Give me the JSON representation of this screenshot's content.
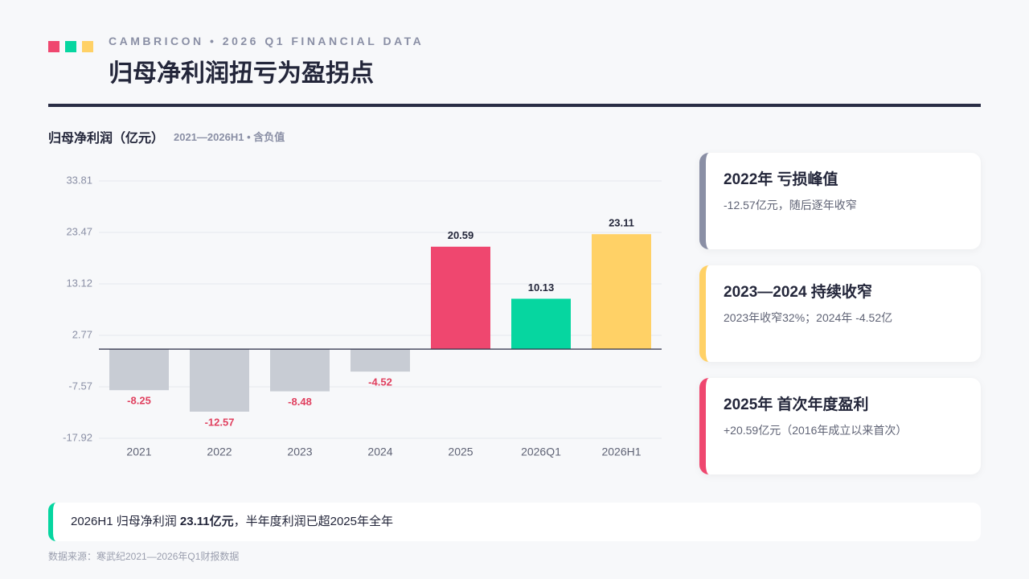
{
  "header": {
    "subtitle": "CAMBRICON • 2026 Q1 FINANCIAL DATA",
    "title": "归母净利润扭亏为盈拐点"
  },
  "chart_data": {
    "type": "bar",
    "title": "归母净利润（亿元）",
    "subtitle": "2021—2026H1 • 含负值",
    "categories": [
      "2021",
      "2022",
      "2023",
      "2024",
      "2025",
      "2026Q1",
      "2026H1"
    ],
    "values": [
      -8.25,
      -12.57,
      -8.48,
      -4.52,
      20.59,
      10.13,
      23.11
    ],
    "colors": [
      "#c8ccd4",
      "#c8ccd4",
      "#c8ccd4",
      "#c8ccd4",
      "#ef476f",
      "#06d6a0",
      "#ffd166"
    ],
    "ylim": [
      -17.92,
      33.81
    ],
    "yticks": [
      -17.92,
      -7.57,
      2.77,
      13.12,
      23.47,
      33.81
    ],
    "grid": true
  },
  "cards": [
    {
      "title": "2022年 亏损峰值",
      "text": "-12.57亿元，随后逐年收窄",
      "color": "#8a8fa5"
    },
    {
      "title": "2023—2024 持续收窄",
      "text": "2023年收窄32%；2024年 -4.52亿",
      "color": "#ffd166"
    },
    {
      "title": "2025年 首次年度盈利",
      "text": "+20.59亿元（2016年成立以来首次）",
      "color": "#ef476f"
    }
  ],
  "callout": {
    "before": "2026H1 归母净利润 ",
    "bold": "23.11亿元",
    "after": "，半年度利润已超2025年全年"
  },
  "source": "数据来源：寒武纪2021—2026年Q1财报数据"
}
